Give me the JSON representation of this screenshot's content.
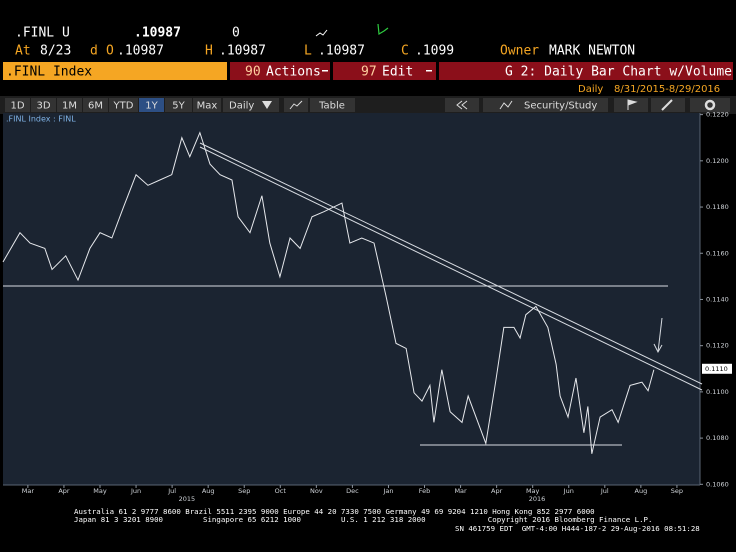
{
  "header": {
    "ticker": ".FINL U",
    "price": ".10987",
    "change": "0",
    "at_label": "At",
    "at_value": "8/23",
    "d_label": "d",
    "open_label": "O",
    "open": ".10987",
    "high_label": "H",
    "high": ".10987",
    "low_label": "L",
    "low": ".10987",
    "close_label": "C",
    "close": ".1099",
    "owner_label": "Owner",
    "owner": "MARK NEWTON"
  },
  "bar": {
    "security": ".FINL Index",
    "actions_num": "90",
    "actions": "Actions",
    "edit_num": "97",
    "edit": "Edit",
    "title": "G 2: Daily Bar Chart w/Volume"
  },
  "period": {
    "frequency": "Daily",
    "range": "8/31/2015-8/29/2016"
  },
  "toolbar": {
    "ranges": [
      "1D",
      "3D",
      "1M",
      "6M",
      "YTD",
      "1Y",
      "5Y",
      "Max"
    ],
    "frequency": "Daily",
    "table": "Table",
    "study": "Security/Study"
  },
  "chart_data": {
    "type": "line",
    "x": [
      -0.69,
      -0.22,
      0.06,
      0.47,
      0.67,
      1.05,
      1.39,
      1.72,
      2.0,
      2.33,
      2.66,
      3.0,
      3.33,
      3.66,
      3.99,
      4.27,
      4.49,
      4.77,
      5.05,
      5.33,
      5.66,
      5.83,
      6.16,
      6.49,
      6.71,
      6.99,
      7.27,
      7.55,
      7.88,
      8.21,
      8.71,
      8.93,
      9.26,
      9.6,
      9.93,
      10.21,
      10.49,
      10.71,
      10.93,
      11.15,
      11.26,
      11.48,
      11.71,
      12.04,
      12.21,
      12.7,
      12.98,
      13.2,
      13.48,
      13.65,
      13.81,
      14.09,
      14.42,
      14.65,
      14.76,
      14.98,
      15.2,
      15.42,
      15.53,
      15.64,
      15.87,
      16.2,
      16.37,
      16.7,
      17.03,
      17.2,
      17.36
    ],
    "series": [
      {
        "name": ".FINL Index : FINL",
        "color": "#e6e8ec",
        "values": [
          0.11562,
          0.11689,
          0.11644,
          0.11621,
          0.1153,
          0.11589,
          0.11484,
          0.11621,
          0.11689,
          0.11666,
          0.11803,
          0.1194,
          0.11894,
          0.11917,
          0.1194,
          0.121,
          0.12018,
          0.12122,
          0.11986,
          0.1194,
          0.11917,
          0.11758,
          0.11689,
          0.11849,
          0.11644,
          0.11498,
          0.11666,
          0.11621,
          0.11758,
          0.1178,
          0.11817,
          0.11644,
          0.11666,
          0.11644,
          0.11416,
          0.1121,
          0.11188,
          0.10996,
          0.1096,
          0.11028,
          0.10868,
          0.11096,
          0.10914,
          0.10868,
          0.10982,
          0.10777,
          0.11051,
          0.11279,
          0.11279,
          0.11233,
          0.11334,
          0.1137,
          0.11279,
          0.11119,
          0.10982,
          0.10891,
          0.1106,
          0.10823,
          0.10937,
          0.10732,
          0.10891,
          0.10923,
          0.10868,
          0.11028,
          0.11042,
          0.11005,
          0.11096
        ]
      }
    ],
    "xlim": [
      -0.69,
      18.64
    ],
    "xticks": [
      {
        "value": 0,
        "label": "Mar"
      },
      {
        "value": 1,
        "label": "Apr"
      },
      {
        "value": 2,
        "label": "May"
      },
      {
        "value": 3,
        "label": "Jun"
      },
      {
        "value": 4,
        "label": "Jul"
      },
      {
        "value": 5,
        "label": "Aug"
      },
      {
        "value": 6,
        "label": "Sep"
      },
      {
        "value": 7,
        "label": "Oct"
      },
      {
        "value": 8,
        "label": "Nov"
      },
      {
        "value": 9,
        "label": "Dec"
      },
      {
        "value": 10,
        "label": "Jan"
      },
      {
        "value": 11,
        "label": "Feb"
      },
      {
        "value": 12,
        "label": "Mar"
      },
      {
        "value": 13,
        "label": "Apr"
      },
      {
        "value": 14,
        "label": "May"
      },
      {
        "value": 15,
        "label": "Jun"
      },
      {
        "value": 16,
        "label": "Jul"
      },
      {
        "value": 17,
        "label": "Aug"
      },
      {
        "value": 18,
        "label": "Sep"
      }
    ],
    "year_labels": [
      {
        "value": 4.41,
        "label": "2015"
      },
      {
        "value": 14.12,
        "label": "2016"
      }
    ],
    "ylim": [
      0.10597,
      0.12207
    ],
    "yticks": [
      {
        "value": 0.106,
        "label": "0.1060"
      },
      {
        "value": 0.108,
        "label": "0.1080"
      },
      {
        "value": 0.11,
        "label": "0.1100"
      },
      {
        "value": 0.112,
        "label": "0.1120"
      },
      {
        "value": 0.114,
        "label": "0.1140"
      },
      {
        "value": 0.116,
        "label": "0.1160"
      },
      {
        "value": 0.118,
        "label": "0.1180"
      },
      {
        "value": 0.12,
        "label": "0.1200"
      },
      {
        "value": 0.122,
        "label": "0.1220"
      }
    ],
    "last_value": {
      "value": 0.111,
      "label": "0.1110"
    }
  },
  "footer": [
    "Australia 61 2 9777 8600 Brazil 5511 2395 9000 Europe 44 20 7330 7500 Germany 49 69 9204 1210 Hong Kong 852 2977 6000",
    "Japan 81 3 3201 8900         Singapore 65 6212 1000         U.S. 1 212 318 2000              Copyright 2016 Bloomberg Finance L.P.",
    "SN 461759 EDT  GMT-4:00 H444-187-2 29-Aug-2016 08:51:28"
  ]
}
